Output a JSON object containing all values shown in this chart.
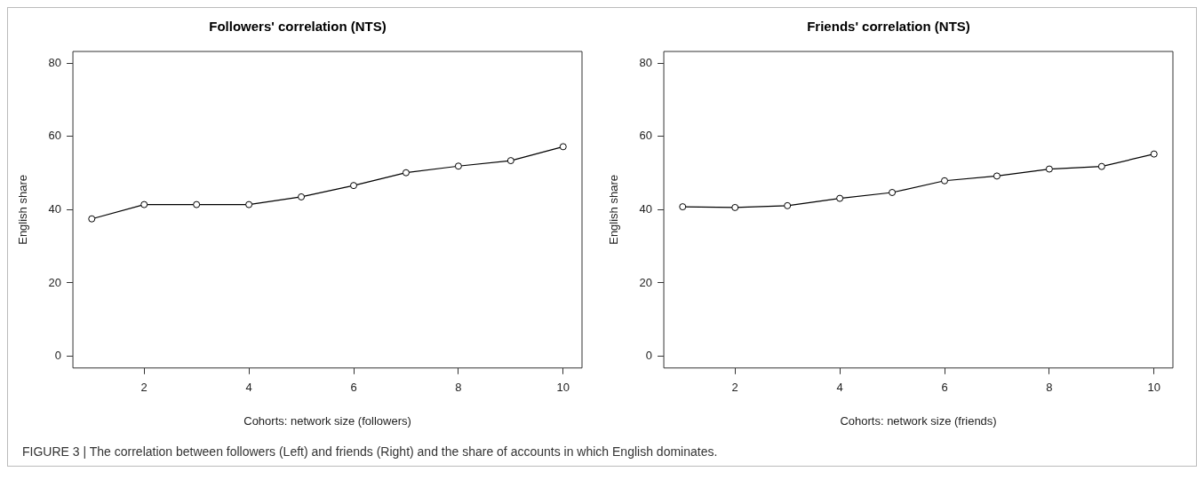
{
  "chart_data": [
    {
      "type": "line",
      "title": "Followers' correlation (NTS)",
      "xlabel": "Cohorts: network size (followers)",
      "ylabel": "English share",
      "x": [
        1,
        2,
        3,
        4,
        5,
        6,
        7,
        8,
        9,
        10
      ],
      "series": [
        {
          "color": "#000000",
          "values": [
            37.5,
            41.4,
            41.4,
            41.4,
            43.5,
            46.6,
            50.1,
            51.9,
            53.4,
            57.2
          ]
        }
      ],
      "xlim": [
        0.64,
        10.36
      ],
      "xticks": [
        2,
        4,
        6,
        8,
        10
      ],
      "ylim": [
        -3.2,
        83.2
      ],
      "yticks": [
        0,
        20,
        40,
        60,
        80
      ],
      "grid": false,
      "legend": false,
      "marker": "circle",
      "line_style": "solid"
    },
    {
      "type": "line",
      "title": "Friends' correlation (NTS)",
      "xlabel": "Cohorts: network size (friends)",
      "ylabel": "English share",
      "x": [
        1,
        2,
        3,
        4,
        5,
        6,
        7,
        8,
        9,
        10
      ],
      "series": [
        {
          "color": "#000000",
          "values": [
            40.8,
            40.6,
            41.1,
            43.1,
            44.7,
            47.9,
            49.2,
            51.1,
            51.8,
            55.2
          ]
        }
      ],
      "xlim": [
        0.64,
        10.36
      ],
      "xticks": [
        2,
        4,
        6,
        8,
        10
      ],
      "ylim": [
        -3.2,
        83.2
      ],
      "yticks": [
        0,
        20,
        40,
        60,
        80
      ],
      "grid": false,
      "legend": false,
      "marker": "circle",
      "line_style": "solid",
      "annotations": [
        "FIGURE 3 | The correlation between followers (Left) and friends (Right) and the share of accounts in which English dominates."
      ]
    }
  ]
}
